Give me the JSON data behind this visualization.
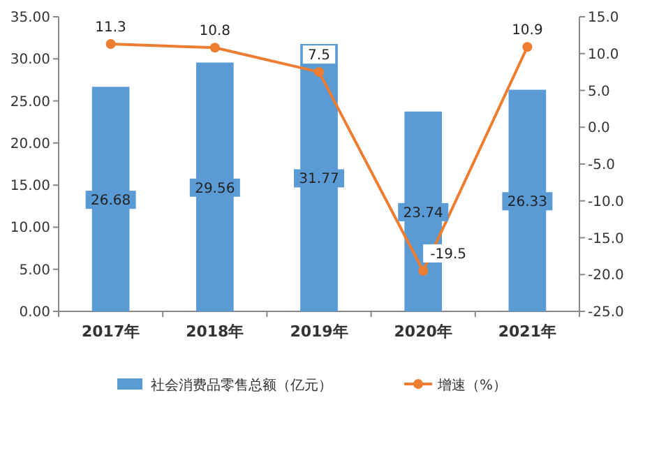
{
  "chart_data": {
    "type": "bar",
    "categories": [
      "2017年",
      "2018年",
      "2019年",
      "2020年",
      "2021年"
    ],
    "series": [
      {
        "name": "社会消费品零售总额（亿元）",
        "color": "#5b9bd5",
        "values": [
          26.68,
          29.56,
          31.77,
          23.74,
          26.33
        ]
      },
      {
        "name": "增速（%）",
        "type": "line",
        "axis": "y2",
        "color": "#ed7d31",
        "marker": "circle",
        "values": [
          11.3,
          10.8,
          7.5,
          -19.5,
          10.9
        ]
      }
    ],
    "ylim": [
      0,
      35
    ],
    "yticks": [
      {
        "value": 0,
        "label": "0.00"
      },
      {
        "value": 5,
        "label": "5.00"
      },
      {
        "value": 10,
        "label": "10.00"
      },
      {
        "value": 15,
        "label": "15.00"
      },
      {
        "value": 20,
        "label": "20.00"
      },
      {
        "value": 25,
        "label": "25.00"
      },
      {
        "value": 30,
        "label": "30.00"
      },
      {
        "value": 35,
        "label": "35.00"
      }
    ],
    "y2lim": [
      -25,
      15
    ],
    "y2ticks": [
      {
        "value": -25,
        "label": "-25.0"
      },
      {
        "value": -20,
        "label": "-20.0"
      },
      {
        "value": -15,
        "label": "-15.0"
      },
      {
        "value": -10,
        "label": "-10.0"
      },
      {
        "value": -5,
        "label": "-5.0"
      },
      {
        "value": 0,
        "label": "0.0"
      },
      {
        "value": 5,
        "label": "5.0"
      },
      {
        "value": 10,
        "label": "10.0"
      },
      {
        "value": 15,
        "label": "15.0"
      }
    ],
    "data_labels": true,
    "legend": "bottom",
    "grid": false
  }
}
